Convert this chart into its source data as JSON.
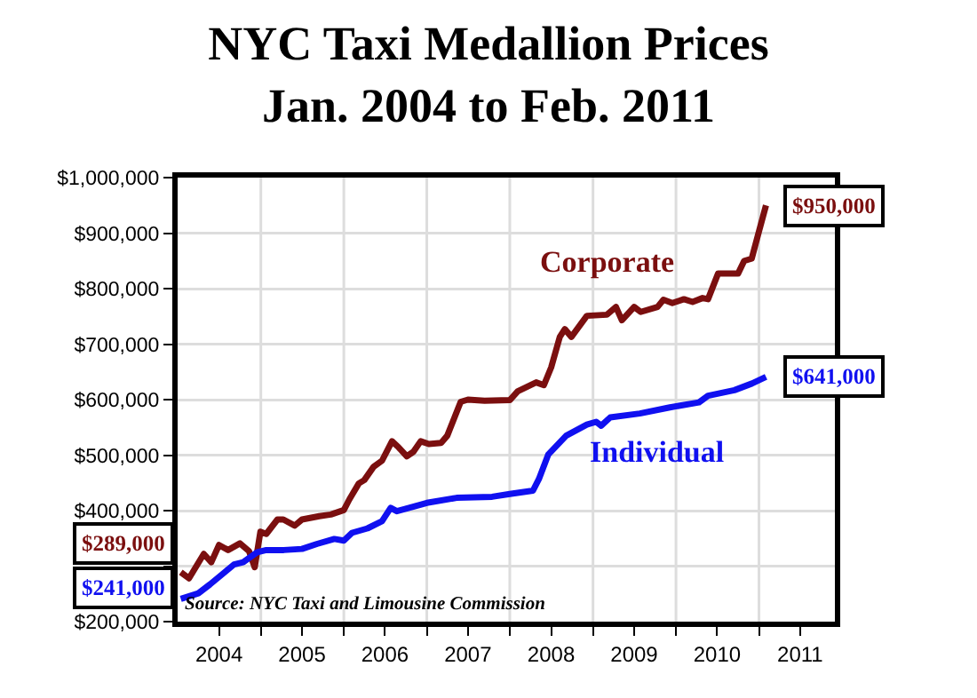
{
  "chart_data": {
    "type": "line",
    "title": "NYC Taxi Medallion Prices\nJan. 2004 to Feb. 2011",
    "xlim": [
      "2004-01-01",
      "2011-12-01"
    ],
    "xticks": [
      {
        "value": "2004-07-01",
        "label": "2004"
      },
      {
        "value": "2005-01-01",
        "label": null
      },
      {
        "value": "2005-07-01",
        "label": "2005"
      },
      {
        "value": "2006-01-01",
        "label": null
      },
      {
        "value": "2006-07-01",
        "label": "2006"
      },
      {
        "value": "2007-01-01",
        "label": null
      },
      {
        "value": "2007-07-01",
        "label": "2007"
      },
      {
        "value": "2008-01-01",
        "label": null
      },
      {
        "value": "2008-07-01",
        "label": "2008"
      },
      {
        "value": "2009-01-01",
        "label": null
      },
      {
        "value": "2009-07-01",
        "label": "2009"
      },
      {
        "value": "2010-01-01",
        "label": null
      },
      {
        "value": "2010-07-01",
        "label": "2010"
      },
      {
        "value": "2011-01-01",
        "label": null
      },
      {
        "value": "2011-07-01",
        "label": "2011"
      }
    ],
    "ylim": [
      200000,
      1000000
    ],
    "yticks": [
      {
        "value": 200000,
        "label": "$200,000"
      },
      {
        "value": 300000,
        "label": null
      },
      {
        "value": 400000,
        "label": "$400,000"
      },
      {
        "value": 500000,
        "label": "$500,000"
      },
      {
        "value": 600000,
        "label": "$600,000"
      },
      {
        "value": 700000,
        "label": "$700,000"
      },
      {
        "value": 800000,
        "label": "$800,000"
      },
      {
        "value": 900000,
        "label": "$900,000"
      },
      {
        "value": 1000000,
        "label": "$1,000,000"
      }
    ],
    "grid": true,
    "legend": false,
    "marker": "none",
    "line_style": "solid",
    "series": [
      {
        "name": "Corporate",
        "color": "#7b0f0f",
        "x": [
          "2004-01-15",
          "2004-02-20",
          "2004-04-25",
          "2004-05-28",
          "2004-07-01",
          "2004-08-10",
          "2004-10-01",
          "2004-11-10",
          "2004-12-05",
          "2004-12-30",
          "2005-01-25",
          "2005-03-15",
          "2005-04-10",
          "2005-05-30",
          "2005-07-01",
          "2005-09-15",
          "2005-11-05",
          "2006-01-01",
          "2006-01-25",
          "2006-03-08",
          "2006-04-01",
          "2006-05-12",
          "2006-06-18",
          "2006-08-01",
          "2006-08-30",
          "2006-10-05",
          "2006-11-03",
          "2006-12-05",
          "2007-01-10",
          "2007-03-05",
          "2007-04-01",
          "2007-05-30",
          "2007-07-01",
          "2007-09-12",
          "2008-01-01",
          "2008-02-05",
          "2008-04-26",
          "2008-05-30",
          "2008-07-01",
          "2008-08-08",
          "2008-08-30",
          "2008-09-28",
          "2008-12-05",
          "2009-03-03",
          "2009-04-12",
          "2009-05-08",
          "2009-07-01",
          "2009-07-30",
          "2009-10-12",
          "2009-11-07",
          "2009-12-16",
          "2010-02-05",
          "2010-03-15",
          "2010-04-28",
          "2010-05-22",
          "2010-07-05",
          "2010-10-01",
          "2010-10-28",
          "2010-11-30",
          "2011-01-01",
          "2011-02-01"
        ],
        "values": [
          289000,
          278000,
          322000,
          307000,
          338000,
          329000,
          341000,
          327000,
          298000,
          362000,
          358000,
          384000,
          384000,
          373000,
          384000,
          390000,
          393000,
          401000,
          420000,
          449000,
          455000,
          479000,
          490000,
          525000,
          514000,
          498000,
          506000,
          525000,
          520000,
          522000,
          535000,
          596000,
          600000,
          598000,
          599000,
          615000,
          631000,
          626000,
          658000,
          713000,
          727000,
          713000,
          751000,
          753000,
          767000,
          743000,
          767000,
          758000,
          767000,
          780000,
          774000,
          781000,
          776000,
          783000,
          781000,
          827000,
          827000,
          850000,
          854000,
          903000,
          950000
        ]
      },
      {
        "name": "Individual",
        "color": "#1010f0",
        "x": [
          "2004-01-15",
          "2004-04-01",
          "2004-05-22",
          "2004-07-26",
          "2004-09-05",
          "2004-10-15",
          "2004-12-16",
          "2005-01-25",
          "2005-04-12",
          "2005-07-01",
          "2005-09-05",
          "2005-11-20",
          "2006-01-01",
          "2006-02-06",
          "2006-04-15",
          "2006-06-18",
          "2006-07-26",
          "2006-08-22",
          "2006-10-15",
          "2007-01-01",
          "2007-05-12",
          "2007-10-15",
          "2008-01-01",
          "2008-04-12",
          "2008-05-08",
          "2008-06-18",
          "2008-09-05",
          "2008-12-05",
          "2009-01-15",
          "2009-02-06",
          "2009-03-18",
          "2009-07-26",
          "2009-12-05",
          "2010-04-12",
          "2010-05-22",
          "2010-09-15",
          "2010-12-01",
          "2011-02-01"
        ],
        "values": [
          241000,
          251000,
          267000,
          289000,
          303000,
          307000,
          325000,
          329000,
          329000,
          331000,
          340000,
          349000,
          346000,
          360000,
          368000,
          381000,
          405000,
          399000,
          405000,
          414000,
          423000,
          425000,
          430000,
          436000,
          457000,
          501000,
          535000,
          555000,
          560000,
          553000,
          568000,
          575000,
          586000,
          595000,
          607000,
          617000,
          629000,
          641000
        ]
      }
    ],
    "annotations": [
      {
        "text": "$289,000",
        "x": "2004-01-15",
        "y": 289000
      },
      {
        "text": "$241,000",
        "x": "2004-01-15",
        "y": 241000
      },
      {
        "text": "$950,000",
        "x": "2011-02-01",
        "y": 950000
      },
      {
        "text": "$641,000",
        "x": "2011-02-01",
        "y": 641000
      },
      "Source: NYC Taxi and Limousine Commission"
    ]
  }
}
